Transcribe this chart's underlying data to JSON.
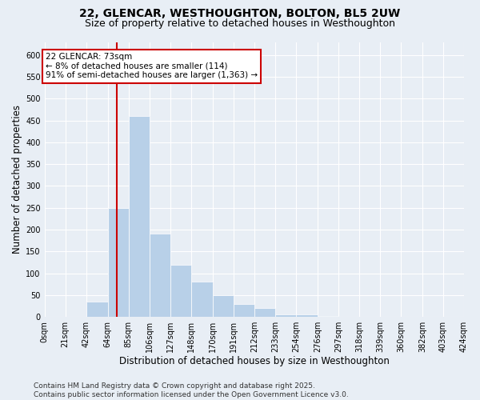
{
  "title_line1": "22, GLENCAR, WESTHOUGHTON, BOLTON, BL5 2UW",
  "title_line2": "Size of property relative to detached houses in Westhoughton",
  "xlabel": "Distribution of detached houses by size in Westhoughton",
  "ylabel": "Number of detached properties",
  "bin_edges": [
    0,
    21,
    42,
    64,
    85,
    106,
    127,
    148,
    170,
    191,
    212,
    233,
    254,
    276,
    297,
    318,
    339,
    360,
    382,
    403,
    424
  ],
  "bar_heights": [
    0,
    0,
    35,
    250,
    460,
    190,
    120,
    80,
    50,
    30,
    20,
    5,
    5,
    2,
    0,
    0,
    0,
    0,
    0,
    0
  ],
  "bar_color": "#b8d0e8",
  "vline_x": 73,
  "vline_color": "#cc0000",
  "annotation_text": "22 GLENCAR: 73sqm\n← 8% of detached houses are smaller (114)\n91% of semi-detached houses are larger (1,363) →",
  "annotation_box_edgecolor": "#cc0000",
  "tick_labels": [
    "0sqm",
    "21sqm",
    "42sqm",
    "64sqm",
    "85sqm",
    "106sqm",
    "127sqm",
    "148sqm",
    "170sqm",
    "191sqm",
    "212sqm",
    "233sqm",
    "254sqm",
    "276sqm",
    "297sqm",
    "318sqm",
    "339sqm",
    "360sqm",
    "382sqm",
    "403sqm",
    "424sqm"
  ],
  "ylim": [
    0,
    630
  ],
  "yticks": [
    0,
    50,
    100,
    150,
    200,
    250,
    300,
    350,
    400,
    450,
    500,
    550,
    600
  ],
  "bg_color": "#e8eef5",
  "grid_color": "#ffffff",
  "footer_line1": "Contains HM Land Registry data © Crown copyright and database right 2025.",
  "footer_line2": "Contains public sector information licensed under the Open Government Licence v3.0.",
  "title_fontsize": 10,
  "subtitle_fontsize": 9,
  "axis_label_fontsize": 8.5,
  "tick_fontsize": 7,
  "annotation_fontsize": 7.5,
  "footer_fontsize": 6.5
}
